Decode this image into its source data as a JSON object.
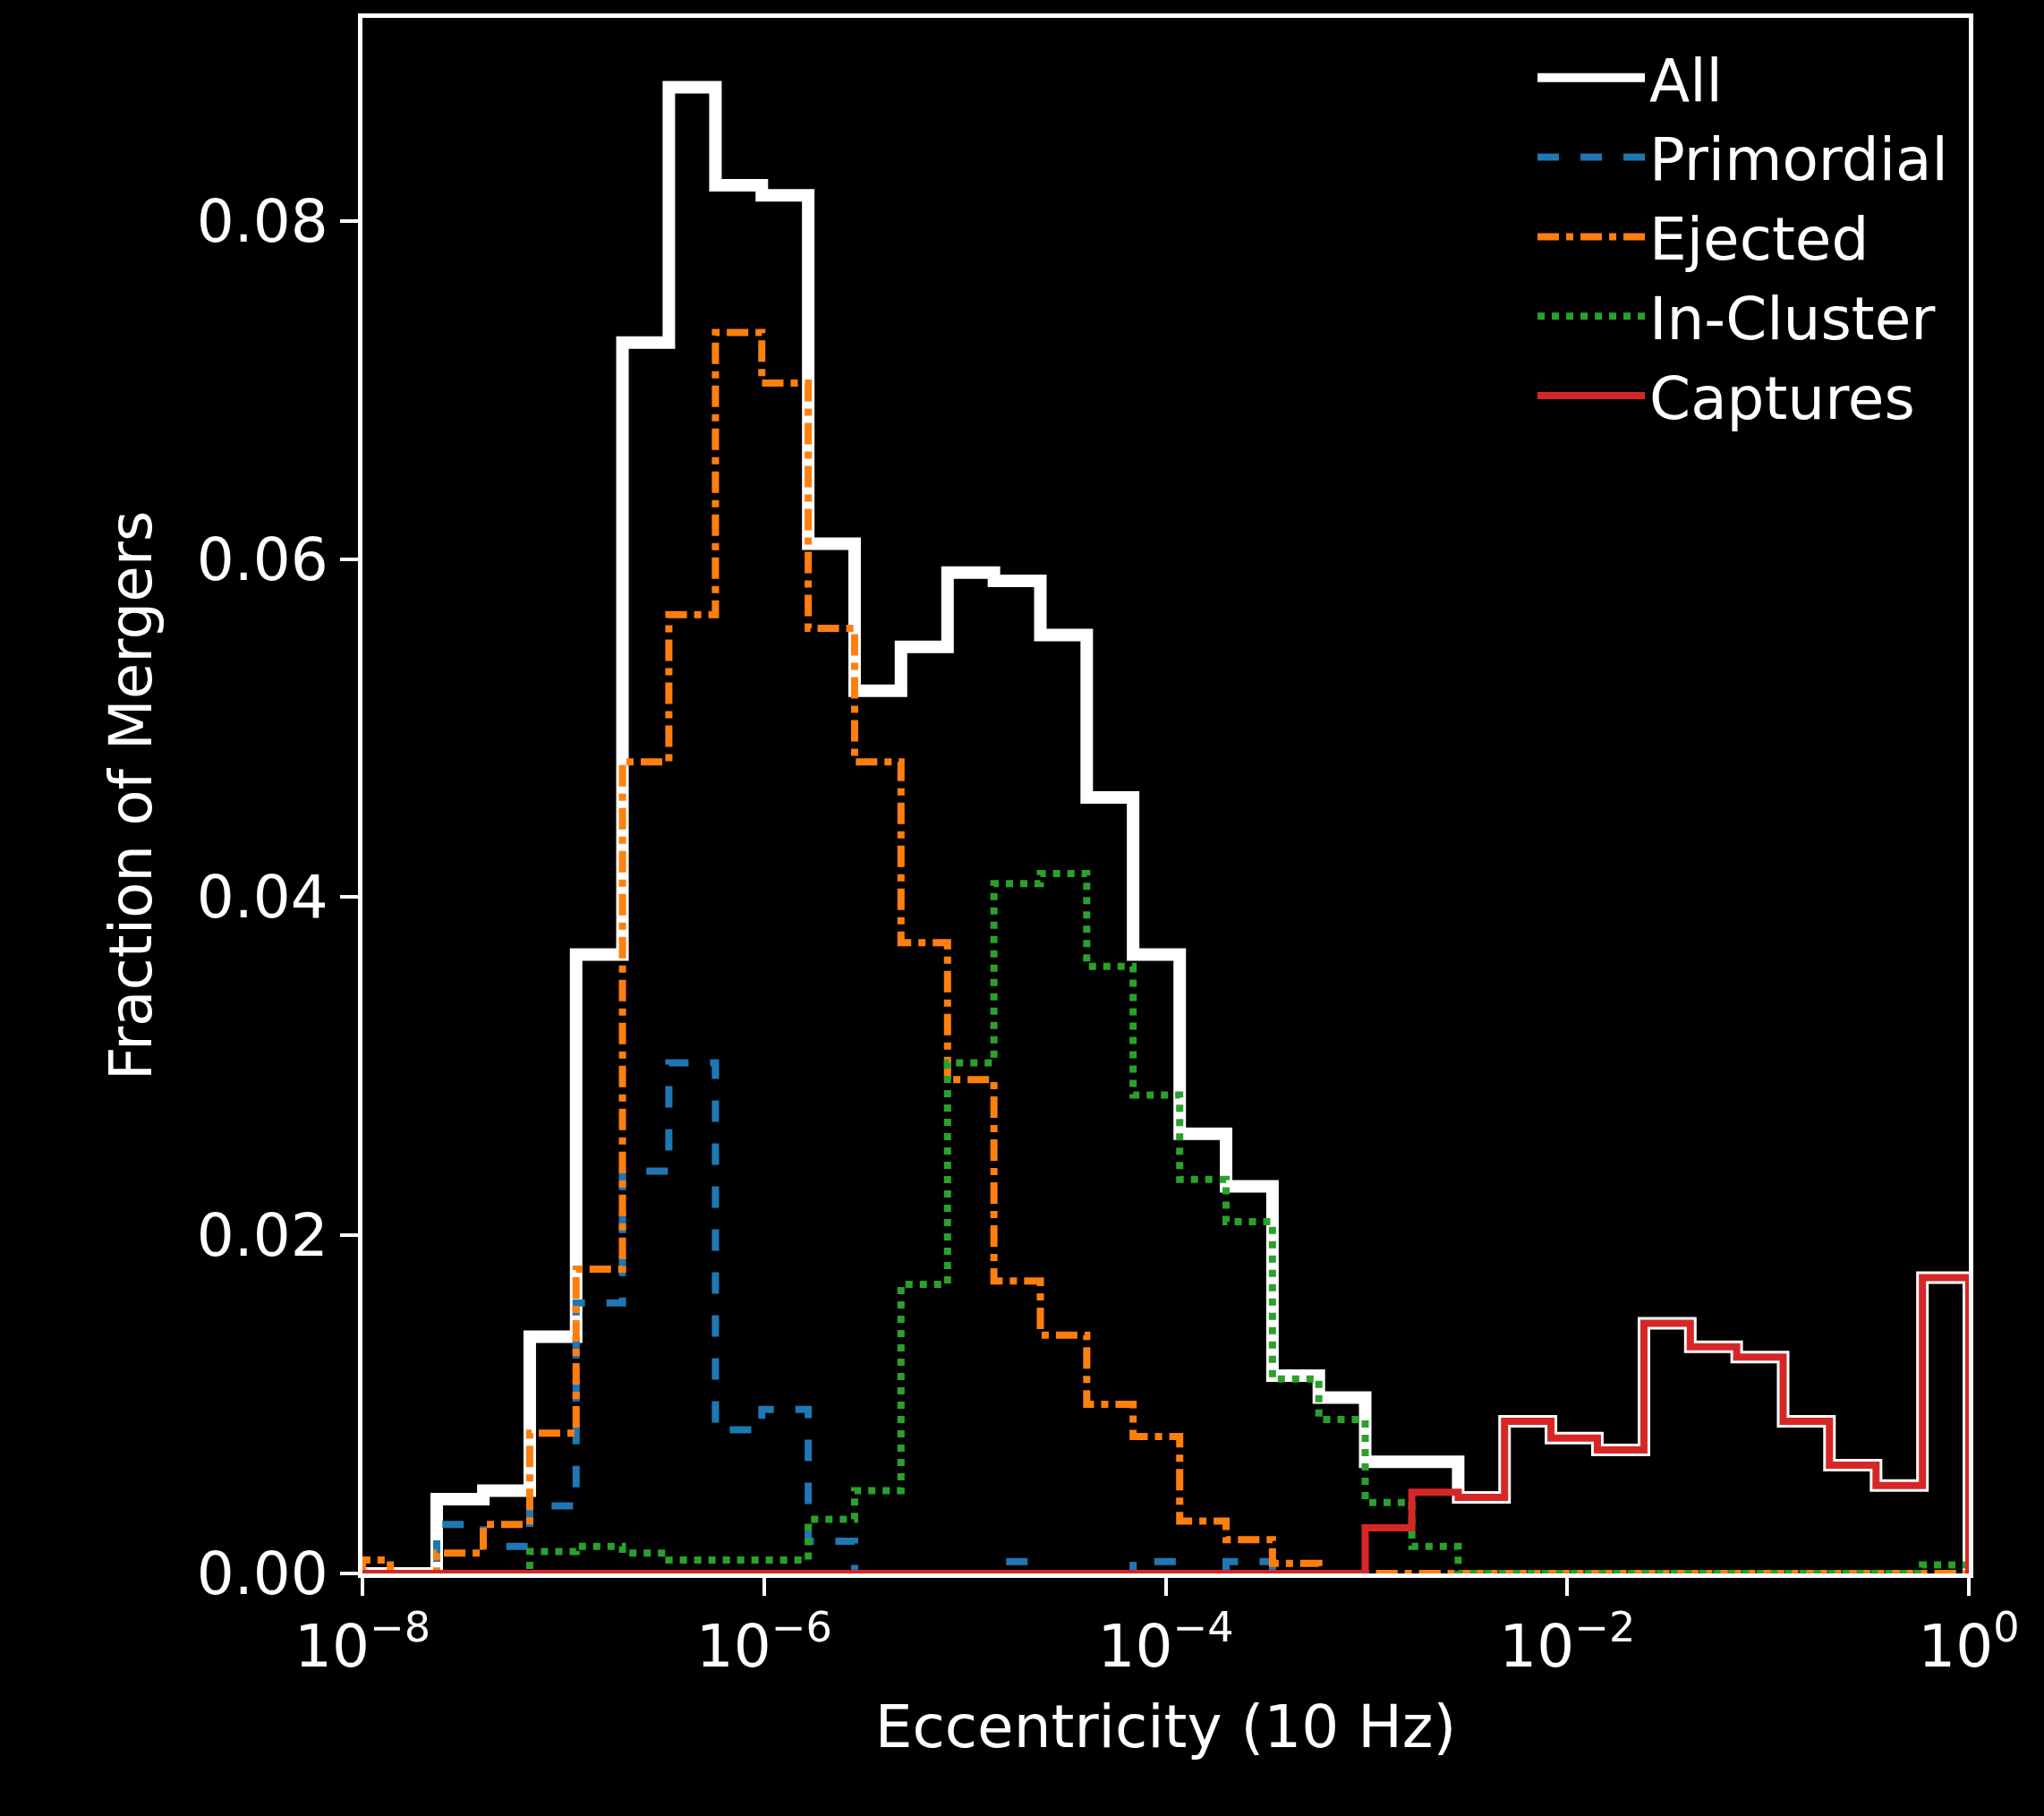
{
  "chart_data": {
    "type": "histogram",
    "xlabel": "Eccentricity (10 Hz)",
    "ylabel": "Fraction of Mergers",
    "bins": [
      1e-08,
      1.377e-08,
      2.344e-08,
      4e-08,
      6.81e-08,
      1.159e-07,
      1.972e-07,
      3.357e-07,
      5.728e-07,
      9.75e-07,
      1.66e-06,
      2.825e-06,
      4.808e-06,
      8.2e-06,
      1.396e-05,
      2.377e-05,
      4.046e-05,
      6.887e-05,
      0.0001175,
      0.0002,
      0.0003404,
      0.0005794,
      0.000986,
      0.001683,
      0.002864,
      0.004875,
      0.0083,
      0.01413,
      0.0241,
      0.04102,
      0.06982,
      0.1189,
      0.2023,
      0.3451,
      0.5875,
      1
    ],
    "series": [
      {
        "name": "All",
        "color": "#ffffff",
        "line_style": "solid",
        "values": [
          0,
          0,
          0.0044,
          0.0049,
          0.014,
          0.0366,
          0.0728,
          0.0879,
          0.0821,
          0.0815,
          0.0609,
          0.0522,
          0.0548,
          0.0592,
          0.0587,
          0.0555,
          0.0459,
          0.0366,
          0.026,
          0.0229,
          0.0117,
          0.0104,
          0.0066,
          0.0066,
          0.0045,
          0.009,
          0.008,
          0.0073,
          0.0148,
          0.0134,
          0.0128,
          0.009,
          0.0064,
          0.0052,
          0.0175
        ]
      },
      {
        "name": "Primordial",
        "color": "#1f77b4",
        "line_style": "dashed",
        "values": [
          0,
          0,
          0.0029,
          0.0016,
          0.004,
          0.016,
          0.0238,
          0.0302,
          0.0085,
          0.0097,
          0.0019,
          0,
          0,
          0,
          0.0007,
          0,
          0,
          0.0007,
          0,
          0.0007,
          0,
          0,
          0,
          0,
          0,
          0,
          0,
          0,
          0,
          0,
          0,
          0,
          0,
          0,
          0
        ]
      },
      {
        "name": "Ejected",
        "color": "#ff7f0e",
        "line_style": "dashdot",
        "values": [
          0.0008,
          0,
          0.0012,
          0.0029,
          0.0083,
          0.018,
          0.048,
          0.0567,
          0.0734,
          0.0704,
          0.0559,
          0.048,
          0.0373,
          0.0292,
          0.0173,
          0.0141,
          0.01,
          0.0081,
          0.0031,
          0.002,
          0.0006,
          0,
          0,
          0,
          0,
          0,
          0,
          0,
          0,
          0,
          0,
          0,
          0,
          0,
          0
        ]
      },
      {
        "name": "In-Cluster",
        "color": "#2ca02c",
        "line_style": "dotted",
        "values": [
          0,
          0,
          0,
          0,
          0.0013,
          0.0016,
          0.0012,
          0.0008,
          0.0008,
          0.0008,
          0.0032,
          0.0049,
          0.0171,
          0.0302,
          0.0408,
          0.0414,
          0.0359,
          0.0283,
          0.0233,
          0.0208,
          0.0115,
          0.0091,
          0.0042,
          0.0016,
          0,
          0,
          0,
          0,
          0,
          0,
          0,
          0,
          0,
          0,
          0.0005
        ]
      },
      {
        "name": "Captures",
        "color": "#d62728",
        "line_style": "solid",
        "values": [
          0,
          0,
          0,
          0,
          0,
          0,
          0,
          0,
          0,
          0,
          0,
          0,
          0,
          0,
          0,
          0,
          0,
          0,
          0,
          0,
          0,
          0,
          0.0027,
          0.0048,
          0.0045,
          0.009,
          0.008,
          0.0073,
          0.0148,
          0.0134,
          0.0128,
          0.009,
          0.0064,
          0.0052,
          0.0175
        ]
      }
    ],
    "log": "x",
    "xlim": [
      1e-08,
      1
    ],
    "xticks": [
      {
        "value": 1e-08,
        "label": "10$^{−8}$"
      },
      {
        "value": 1e-06,
        "label": "10$^{−6}$"
      },
      {
        "value": 0.0001,
        "label": "10$^{−4}$"
      },
      {
        "value": 0.01,
        "label": "10$^{−2}$"
      },
      {
        "value": 1,
        "label": "10$^{0}$"
      }
    ],
    "ylim": [
      0,
      0.092
    ],
    "yticks": [
      {
        "value": 0,
        "label": "0.00"
      },
      {
        "value": 0.02,
        "label": "0.02"
      },
      {
        "value": 0.04,
        "label": "0.04"
      },
      {
        "value": 0.06,
        "label": "0.06"
      },
      {
        "value": 0.08,
        "label": "0.08"
      }
    ],
    "grid": false,
    "legend": "top right"
  }
}
